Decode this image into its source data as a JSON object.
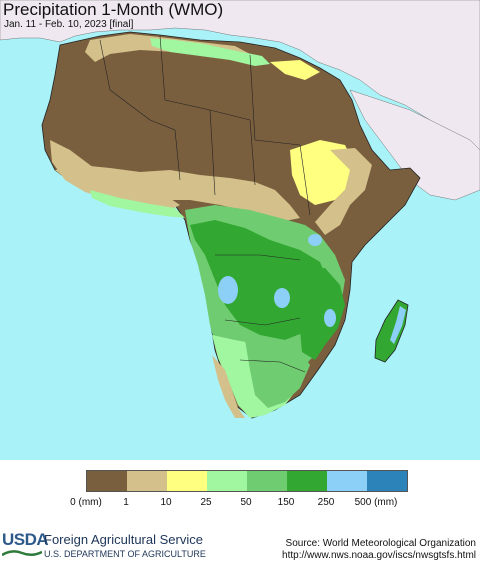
{
  "map": {
    "title": "Precipitation 1-Month (WMO)",
    "subtitle": "Jan. 11 - Feb. 10, 2023 [final]",
    "region": "Africa",
    "ocean_color": "#a9f2f8",
    "no_data_land_color": "#efe8f0"
  },
  "legend": {
    "unit_left": "0 (mm)",
    "ticks": [
      "1",
      "10",
      "25",
      "50",
      "150",
      "250"
    ],
    "unit_right": "500 (mm)",
    "colors": [
      "#7a5f3f",
      "#d4c08a",
      "#ffff80",
      "#a0f7a0",
      "#70cc70",
      "#32a832",
      "#8ccff7",
      "#2b83ba"
    ]
  },
  "footer": {
    "logo_text": "USDA",
    "agency": "Foreign Agricultural Service",
    "department": "U.S. DEPARTMENT OF AGRICULTURE",
    "source": "Source: World Meteorological Organization",
    "url": "http://www.nws.noaa.gov/iscs/nwsgtsfs.html"
  }
}
